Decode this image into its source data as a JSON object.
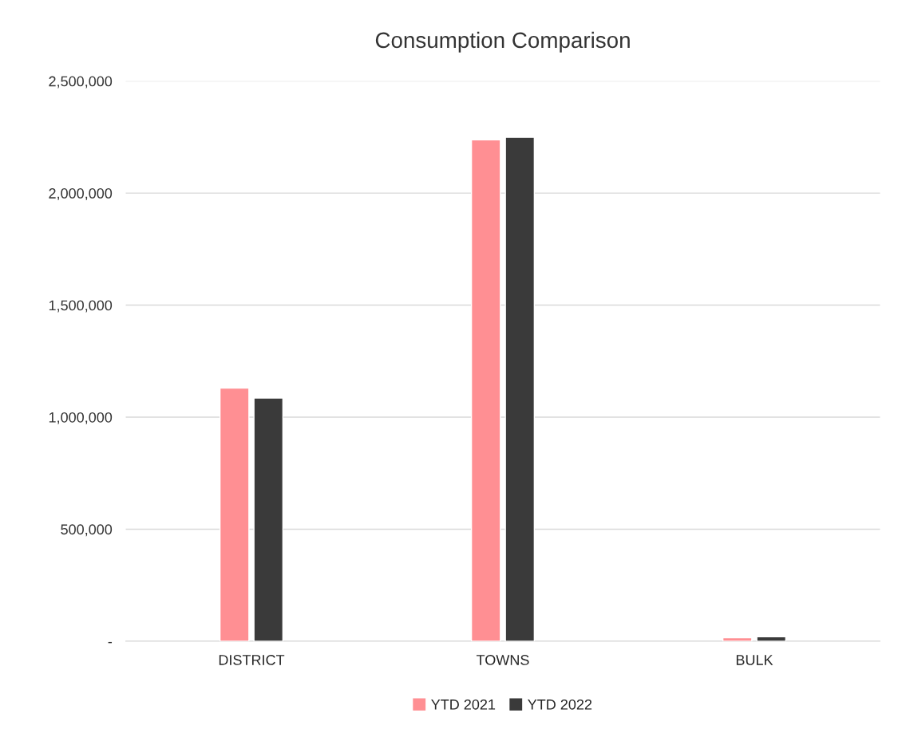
{
  "chart_data": {
    "type": "bar",
    "title": "Consumption Comparison",
    "categories": [
      "DISTRICT",
      "TOWNS",
      "BULK"
    ],
    "series": [
      {
        "name": "YTD 2021",
        "color": "#ff8f93",
        "values": [
          1130000,
          2238000,
          15000
        ]
      },
      {
        "name": "YTD 2022",
        "color": "#3a3a3a",
        "values": [
          1085000,
          2249000,
          20000
        ]
      }
    ],
    "ylim": [
      0,
      2500000
    ],
    "yticks": [
      {
        "value": 0,
        "label": "-"
      },
      {
        "value": 500000,
        "label": "500,000"
      },
      {
        "value": 1000000,
        "label": "1,000,000"
      },
      {
        "value": 1500000,
        "label": "1,500,000"
      },
      {
        "value": 2000000,
        "label": "2,000,000"
      },
      {
        "value": 2500000,
        "label": "2,500,000"
      }
    ],
    "grid": "y",
    "legend": "bottom"
  }
}
